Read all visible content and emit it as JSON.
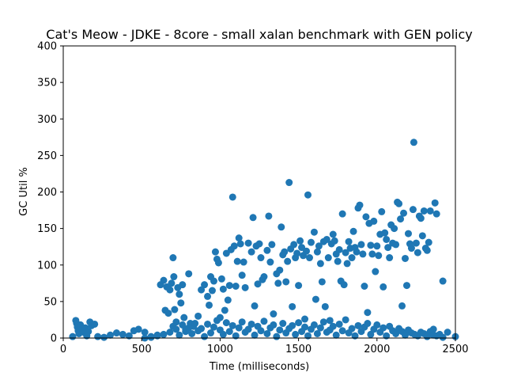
{
  "chart_data": {
    "type": "scatter",
    "title": "Cat's Meow - JDKE - 8core -  small xalan benchmark with GEN policy",
    "xlabel": "Time (milliseconds)",
    "ylabel": "GC Util %",
    "xlim": [
      0,
      2500
    ],
    "ylim": [
      0,
      400
    ],
    "xticks": [
      0,
      500,
      1000,
      1500,
      2000,
      2500
    ],
    "yticks": [
      0,
      50,
      100,
      150,
      200,
      250,
      300,
      350,
      400
    ],
    "grid": false,
    "marker_color": "#1f77b4",
    "series": [
      {
        "points": [
          [
            60,
            2
          ],
          [
            80,
            24
          ],
          [
            85,
            20
          ],
          [
            90,
            15
          ],
          [
            95,
            10
          ],
          [
            100,
            6
          ],
          [
            110,
            18
          ],
          [
            120,
            12
          ],
          [
            130,
            8
          ],
          [
            140,
            14
          ],
          [
            150,
            3
          ],
          [
            160,
            9
          ],
          [
            170,
            22
          ],
          [
            180,
            17
          ],
          [
            200,
            19
          ],
          [
            220,
            2
          ],
          [
            260,
            1
          ],
          [
            300,
            4
          ],
          [
            340,
            7
          ],
          [
            380,
            5
          ],
          [
            420,
            3
          ],
          [
            450,
            10
          ],
          [
            480,
            12
          ],
          [
            520,
            8
          ],
          [
            560,
            2
          ],
          [
            600,
            4
          ],
          [
            620,
            73
          ],
          [
            640,
            79
          ],
          [
            650,
            38
          ],
          [
            660,
            70
          ],
          [
            670,
            34
          ],
          [
            680,
            66
          ],
          [
            690,
            75
          ],
          [
            700,
            110
          ],
          [
            705,
            84
          ],
          [
            710,
            39
          ],
          [
            720,
            22
          ],
          [
            730,
            69
          ],
          [
            740,
            60
          ],
          [
            750,
            48
          ],
          [
            760,
            73
          ],
          [
            770,
            28
          ],
          [
            780,
            12
          ],
          [
            800,
            88
          ],
          [
            810,
            20
          ],
          [
            830,
            16
          ],
          [
            860,
            30
          ],
          [
            880,
            66
          ],
          [
            900,
            73
          ],
          [
            920,
            57
          ],
          [
            930,
            45
          ],
          [
            940,
            84
          ],
          [
            950,
            65
          ],
          [
            960,
            78
          ],
          [
            970,
            118
          ],
          [
            980,
            108
          ],
          [
            990,
            103
          ],
          [
            1000,
            28
          ],
          [
            1010,
            81
          ],
          [
            1020,
            67
          ],
          [
            1030,
            38
          ],
          [
            1040,
            116
          ],
          [
            1050,
            52
          ],
          [
            1060,
            72
          ],
          [
            1070,
            121
          ],
          [
            1080,
            193
          ],
          [
            1090,
            126
          ],
          [
            1100,
            71
          ],
          [
            1110,
            105
          ],
          [
            1120,
            137
          ],
          [
            1130,
            129
          ],
          [
            1140,
            86
          ],
          [
            1150,
            104
          ],
          [
            1160,
            69
          ],
          [
            1180,
            130
          ],
          [
            1200,
            118
          ],
          [
            1210,
            165
          ],
          [
            1220,
            44
          ],
          [
            1230,
            126
          ],
          [
            1240,
            74
          ],
          [
            1250,
            129
          ],
          [
            1260,
            110
          ],
          [
            1270,
            80
          ],
          [
            1280,
            84
          ],
          [
            1300,
            120
          ],
          [
            1310,
            167
          ],
          [
            1320,
            104
          ],
          [
            1330,
            128
          ],
          [
            1340,
            33
          ],
          [
            1360,
            88
          ],
          [
            1370,
            75
          ],
          [
            1380,
            93
          ],
          [
            1390,
            152
          ],
          [
            1400,
            114
          ],
          [
            1410,
            118
          ],
          [
            1420,
            77
          ],
          [
            1430,
            105
          ],
          [
            1440,
            213
          ],
          [
            1450,
            122
          ],
          [
            1460,
            43
          ],
          [
            1470,
            128
          ],
          [
            1480,
            110
          ],
          [
            1490,
            116
          ],
          [
            1500,
            72
          ],
          [
            1510,
            133
          ],
          [
            1520,
            124
          ],
          [
            1530,
            113
          ],
          [
            1540,
            26
          ],
          [
            1550,
            119
          ],
          [
            1560,
            196
          ],
          [
            1570,
            110
          ],
          [
            1580,
            131
          ],
          [
            1600,
            145
          ],
          [
            1610,
            53
          ],
          [
            1620,
            118
          ],
          [
            1630,
            126
          ],
          [
            1640,
            102
          ],
          [
            1650,
            77
          ],
          [
            1660,
            132
          ],
          [
            1670,
            43
          ],
          [
            1680,
            135
          ],
          [
            1690,
            110
          ],
          [
            1700,
            24
          ],
          [
            1710,
            129
          ],
          [
            1720,
            142
          ],
          [
            1730,
            133
          ],
          [
            1740,
            115
          ],
          [
            1750,
            105
          ],
          [
            1760,
            121
          ],
          [
            1770,
            78
          ],
          [
            1780,
            170
          ],
          [
            1790,
            73
          ],
          [
            1800,
            117
          ],
          [
            1810,
            102
          ],
          [
            1820,
            132
          ],
          [
            1830,
            123
          ],
          [
            1840,
            110
          ],
          [
            1850,
            146
          ],
          [
            1860,
            124
          ],
          [
            1870,
            118
          ],
          [
            1880,
            178
          ],
          [
            1890,
            182
          ],
          [
            1900,
            128
          ],
          [
            1910,
            115
          ],
          [
            1920,
            71
          ],
          [
            1930,
            166
          ],
          [
            1940,
            35
          ],
          [
            1950,
            157
          ],
          [
            1960,
            127
          ],
          [
            1970,
            115
          ],
          [
            1980,
            160
          ],
          [
            1990,
            91
          ],
          [
            2000,
            126
          ],
          [
            2010,
            113
          ],
          [
            2020,
            142
          ],
          [
            2030,
            173
          ],
          [
            2040,
            70
          ],
          [
            2050,
            144
          ],
          [
            2060,
            135
          ],
          [
            2070,
            124
          ],
          [
            2080,
            110
          ],
          [
            2090,
            155
          ],
          [
            2100,
            130
          ],
          [
            2110,
            150
          ],
          [
            2120,
            128
          ],
          [
            2130,
            186
          ],
          [
            2140,
            184
          ],
          [
            2150,
            163
          ],
          [
            2160,
            44
          ],
          [
            2170,
            171
          ],
          [
            2180,
            109
          ],
          [
            2190,
            72
          ],
          [
            2200,
            143
          ],
          [
            2210,
            129
          ],
          [
            2220,
            123
          ],
          [
            2230,
            176
          ],
          [
            2235,
            268
          ],
          [
            2250,
            130
          ],
          [
            2260,
            117
          ],
          [
            2270,
            167
          ],
          [
            2280,
            164
          ],
          [
            2290,
            140
          ],
          [
            2300,
            174
          ],
          [
            2310,
            123
          ],
          [
            2320,
            120
          ],
          [
            2330,
            131
          ],
          [
            2340,
            174
          ],
          [
            2360,
            12
          ],
          [
            2370,
            185
          ],
          [
            2380,
            170
          ],
          [
            2420,
            78
          ],
          [
            2450,
            8
          ],
          [
            2500,
            2
          ],
          [
            520,
            0
          ],
          [
            560,
            1
          ],
          [
            600,
            3
          ],
          [
            640,
            5
          ],
          [
            680,
            8
          ],
          [
            700,
            16
          ],
          [
            720,
            12
          ],
          [
            740,
            4
          ],
          [
            760,
            18
          ],
          [
            780,
            9
          ],
          [
            800,
            14
          ],
          [
            820,
            6
          ],
          [
            840,
            20
          ],
          [
            860,
            10
          ],
          [
            880,
            13
          ],
          [
            900,
            2
          ],
          [
            920,
            19
          ],
          [
            940,
            7
          ],
          [
            960,
            15
          ],
          [
            980,
            24
          ],
          [
            1000,
            11
          ],
          [
            1020,
            5
          ],
          [
            1040,
            21
          ],
          [
            1060,
            9
          ],
          [
            1080,
            17
          ],
          [
            1100,
            3
          ],
          [
            1120,
            14
          ],
          [
            1140,
            22
          ],
          [
            1160,
            8
          ],
          [
            1180,
            12
          ],
          [
            1200,
            19
          ],
          [
            1220,
            4
          ],
          [
            1240,
            16
          ],
          [
            1260,
            10
          ],
          [
            1280,
            23
          ],
          [
            1300,
            6
          ],
          [
            1320,
            14
          ],
          [
            1340,
            18
          ],
          [
            1360,
            2
          ],
          [
            1380,
            11
          ],
          [
            1400,
            20
          ],
          [
            1420,
            7
          ],
          [
            1440,
            13
          ],
          [
            1460,
            17
          ],
          [
            1480,
            5
          ],
          [
            1500,
            21
          ],
          [
            1520,
            9
          ],
          [
            1540,
            15
          ],
          [
            1560,
            3
          ],
          [
            1580,
            12
          ],
          [
            1600,
            18
          ],
          [
            1620,
            6
          ],
          [
            1640,
            14
          ],
          [
            1660,
            22
          ],
          [
            1680,
            8
          ],
          [
            1700,
            11
          ],
          [
            1720,
            16
          ],
          [
            1740,
            4
          ],
          [
            1760,
            19
          ],
          [
            1780,
            10
          ],
          [
            1800,
            25
          ],
          [
            1820,
            7
          ],
          [
            1840,
            13
          ],
          [
            1860,
            3
          ],
          [
            1880,
            17
          ],
          [
            1900,
            9
          ],
          [
            1920,
            15
          ],
          [
            1940,
            20
          ],
          [
            1960,
            5
          ],
          [
            1980,
            12
          ],
          [
            2000,
            18
          ],
          [
            2020,
            8
          ],
          [
            2040,
            14
          ],
          [
            2060,
            3
          ],
          [
            2080,
            16
          ],
          [
            2100,
            10
          ],
          [
            2120,
            6
          ],
          [
            2140,
            13
          ],
          [
            2160,
            9
          ],
          [
            2180,
            4
          ],
          [
            2200,
            11
          ],
          [
            2220,
            7
          ],
          [
            2240,
            5
          ],
          [
            2260,
            3
          ],
          [
            2280,
            8
          ],
          [
            2300,
            6
          ],
          [
            2320,
            2
          ],
          [
            2340,
            9
          ],
          [
            2360,
            4
          ],
          [
            2380,
            3
          ],
          [
            2400,
            5
          ],
          [
            2420,
            1
          ]
        ]
      }
    ]
  }
}
